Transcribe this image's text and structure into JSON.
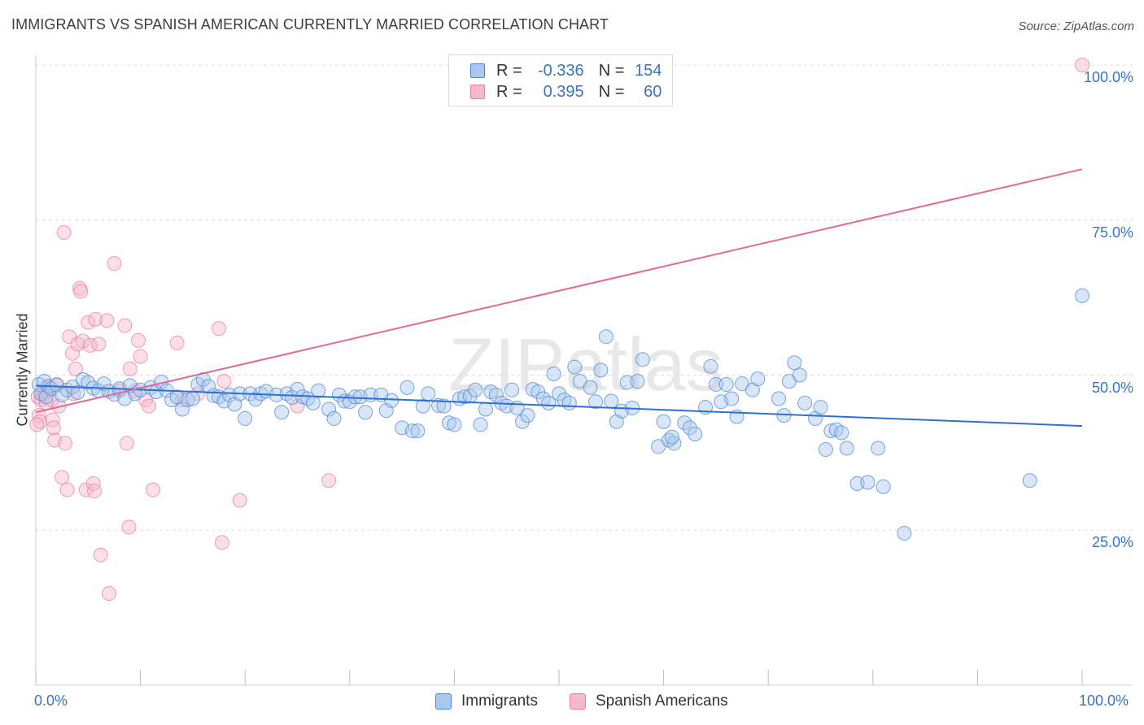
{
  "title": "IMMIGRANTS VS SPANISH AMERICAN CURRENTLY MARRIED CORRELATION CHART",
  "source": "Source: ZipAtlas.com",
  "watermark": "ZIPatlas",
  "legend": {
    "rows": [
      {
        "r_label": "R =",
        "r_value": "-0.336",
        "n_label": "N =",
        "n_value": "154"
      },
      {
        "r_label": "R =",
        "r_value": "0.395",
        "n_label": "N =",
        "n_value": "60"
      }
    ]
  },
  "colors": {
    "immigrants_fill": "#a9c8ef",
    "immigrants_stroke": "#4f88d2",
    "immigrants_line": "#2f6fcf",
    "spanish_fill": "#f6b9ca",
    "spanish_stroke": "#e97ea0",
    "spanish_line": "#e06b93",
    "tick_text": "#3a72c8",
    "grid": "#dcdcdc"
  },
  "chart_data": {
    "type": "scatter",
    "title": "IMMIGRANTS VS SPANISH AMERICAN CURRENTLY MARRIED CORRELATION CHART",
    "xlabel": "",
    "ylabel": "Currently Married",
    "xlim": [
      0,
      100
    ],
    "ylim": [
      0,
      100
    ],
    "x_tick_labels": [
      "0.0%",
      "100.0%"
    ],
    "y_tick_labels": [
      {
        "value": 100,
        "label": "100.0%"
      },
      {
        "value": 75,
        "label": "75.0%"
      },
      {
        "value": 50,
        "label": "50.0%"
      },
      {
        "value": 25,
        "label": "25.0%"
      }
    ],
    "grid": true,
    "legend_position": "bottom",
    "series": [
      {
        "name": "Immigrants",
        "trend": {
          "x": [
            0,
            100
          ],
          "y": [
            48.3,
            41.8
          ]
        },
        "points": [
          [
            0.3,
            48.5
          ],
          [
            0.5,
            47.0
          ],
          [
            0.8,
            49.0
          ],
          [
            1.0,
            46.5
          ],
          [
            1.2,
            48.2
          ],
          [
            1.5,
            47.8
          ],
          [
            2.0,
            48.4
          ],
          [
            2.5,
            46.8
          ],
          [
            3.0,
            47.6
          ],
          [
            3.5,
            48.1
          ],
          [
            4.0,
            47.2
          ],
          [
            4.5,
            49.3
          ],
          [
            5.0,
            48.8
          ],
          [
            5.5,
            47.9
          ],
          [
            6.0,
            47.5
          ],
          [
            6.5,
            48.6
          ],
          [
            7.0,
            47.4
          ],
          [
            7.5,
            46.9
          ],
          [
            8.0,
            47.8
          ],
          [
            8.5,
            46.2
          ],
          [
            9.0,
            48.3
          ],
          [
            9.5,
            47.0
          ],
          [
            10.0,
            47.6
          ],
          [
            11.0,
            48.0
          ],
          [
            11.5,
            47.3
          ],
          [
            12.0,
            48.9
          ],
          [
            12.5,
            47.5
          ],
          [
            13.0,
            46.0
          ],
          [
            13.5,
            46.5
          ],
          [
            14.0,
            44.5
          ],
          [
            14.5,
            46.0
          ],
          [
            15.0,
            46.2
          ],
          [
            15.5,
            48.5
          ],
          [
            16.0,
            49.3
          ],
          [
            16.5,
            48.2
          ],
          [
            17.0,
            46.7
          ],
          [
            17.5,
            46.5
          ],
          [
            18.0,
            45.8
          ],
          [
            18.5,
            46.8
          ],
          [
            19.0,
            45.3
          ],
          [
            19.5,
            47.0
          ],
          [
            20.0,
            43.0
          ],
          [
            20.5,
            47.0
          ],
          [
            21.0,
            46.1
          ],
          [
            21.5,
            47.0
          ],
          [
            22.0,
            47.4
          ],
          [
            23.0,
            46.8
          ],
          [
            23.5,
            44.0
          ],
          [
            24.0,
            47.0
          ],
          [
            24.5,
            46.4
          ],
          [
            25.0,
            47.7
          ],
          [
            25.5,
            46.5
          ],
          [
            26.0,
            46.2
          ],
          [
            26.5,
            45.5
          ],
          [
            27.0,
            47.5
          ],
          [
            28.0,
            44.5
          ],
          [
            28.5,
            43.0
          ],
          [
            29.0,
            46.8
          ],
          [
            29.5,
            45.8
          ],
          [
            30.0,
            45.7
          ],
          [
            30.5,
            46.5
          ],
          [
            31.0,
            46.5
          ],
          [
            31.5,
            44.0
          ],
          [
            32.0,
            46.8
          ],
          [
            33.0,
            46.8
          ],
          [
            33.5,
            44.3
          ],
          [
            34.0,
            45.9
          ],
          [
            35.0,
            41.5
          ],
          [
            35.5,
            48.0
          ],
          [
            36.0,
            41.0
          ],
          [
            36.5,
            41.0
          ],
          [
            37.0,
            45.0
          ],
          [
            37.5,
            47.0
          ],
          [
            38.5,
            45.1
          ],
          [
            39.0,
            45.0
          ],
          [
            39.5,
            42.3
          ],
          [
            40.0,
            42.0
          ],
          [
            40.5,
            46.2
          ],
          [
            41.0,
            46.5
          ],
          [
            41.5,
            46.6
          ],
          [
            42.0,
            47.6
          ],
          [
            42.5,
            42.0
          ],
          [
            43.0,
            44.5
          ],
          [
            43.5,
            47.3
          ],
          [
            44.0,
            46.8
          ],
          [
            44.5,
            45.5
          ],
          [
            45.0,
            45.0
          ],
          [
            45.5,
            47.6
          ],
          [
            46.0,
            44.7
          ],
          [
            46.5,
            42.5
          ],
          [
            47.0,
            43.5
          ],
          [
            47.5,
            47.7
          ],
          [
            48.0,
            47.3
          ],
          [
            48.5,
            46.2
          ],
          [
            49.0,
            45.5
          ],
          [
            49.5,
            50.2
          ],
          [
            50.0,
            47.0
          ],
          [
            50.5,
            46.0
          ],
          [
            51.0,
            45.5
          ],
          [
            51.5,
            51.3
          ],
          [
            52.0,
            49.0
          ],
          [
            53.0,
            48.0
          ],
          [
            53.5,
            45.7
          ],
          [
            54.0,
            50.8
          ],
          [
            54.5,
            56.2
          ],
          [
            55.0,
            45.8
          ],
          [
            55.5,
            42.5
          ],
          [
            56.0,
            44.2
          ],
          [
            56.5,
            48.8
          ],
          [
            57.0,
            44.7
          ],
          [
            57.5,
            49.0
          ],
          [
            58.0,
            52.5
          ],
          [
            59.5,
            38.5
          ],
          [
            60.0,
            42.5
          ],
          [
            60.5,
            39.5
          ],
          [
            61.0,
            39.0
          ],
          [
            62.0,
            42.3
          ],
          [
            62.5,
            41.5
          ],
          [
            63.0,
            40.5
          ],
          [
            64.0,
            44.8
          ],
          [
            64.5,
            51.4
          ],
          [
            65.0,
            48.5
          ],
          [
            65.5,
            45.7
          ],
          [
            66.0,
            48.5
          ],
          [
            66.5,
            46.2
          ],
          [
            67.0,
            43.3
          ],
          [
            67.5,
            48.6
          ],
          [
            68.5,
            47.6
          ],
          [
            69.0,
            49.4
          ],
          [
            71.0,
            46.2
          ],
          [
            71.5,
            43.5
          ],
          [
            72.0,
            49.0
          ],
          [
            72.5,
            52.0
          ],
          [
            73.0,
            50.0
          ],
          [
            73.5,
            45.5
          ],
          [
            74.5,
            43.0
          ],
          [
            75.0,
            44.8
          ],
          [
            75.5,
            38.0
          ],
          [
            76.0,
            41.0
          ],
          [
            76.5,
            41.2
          ],
          [
            77.0,
            40.7
          ],
          [
            77.5,
            38.2
          ],
          [
            78.5,
            32.5
          ],
          [
            79.5,
            32.7
          ],
          [
            80.5,
            38.2
          ],
          [
            81.0,
            32.0
          ],
          [
            83.0,
            24.5
          ],
          [
            95.0,
            33.0
          ],
          [
            100.0,
            62.8
          ],
          [
            60.8,
            40.0
          ]
        ]
      },
      {
        "name": "Spanish Americans",
        "trend": {
          "x": [
            0,
            100
          ],
          "y": [
            44.0,
            83.2
          ]
        },
        "points": [
          [
            0.2,
            46.5
          ],
          [
            0.3,
            43.5
          ],
          [
            0.4,
            42.5
          ],
          [
            0.5,
            46.0
          ],
          [
            0.7,
            47.0
          ],
          [
            0.9,
            46.8
          ],
          [
            1.0,
            45.5
          ],
          [
            1.1,
            47.5
          ],
          [
            1.3,
            48.0
          ],
          [
            1.5,
            46.0
          ],
          [
            1.6,
            42.8
          ],
          [
            1.7,
            41.5
          ],
          [
            1.8,
            39.5
          ],
          [
            2.0,
            48.5
          ],
          [
            2.2,
            45.0
          ],
          [
            2.5,
            33.5
          ],
          [
            2.7,
            73.0
          ],
          [
            2.8,
            39.0
          ],
          [
            3.0,
            31.5
          ],
          [
            3.2,
            56.2
          ],
          [
            3.5,
            53.5
          ],
          [
            3.6,
            47.0
          ],
          [
            3.8,
            51.0
          ],
          [
            4.0,
            55.0
          ],
          [
            4.2,
            64.0
          ],
          [
            4.3,
            63.5
          ],
          [
            4.5,
            55.5
          ],
          [
            4.8,
            31.5
          ],
          [
            5.0,
            58.5
          ],
          [
            5.2,
            54.8
          ],
          [
            5.5,
            32.5
          ],
          [
            5.6,
            31.3
          ],
          [
            5.7,
            59.0
          ],
          [
            6.0,
            55.0
          ],
          [
            6.2,
            21.0
          ],
          [
            6.8,
            58.8
          ],
          [
            7.0,
            14.8
          ],
          [
            7.5,
            68.0
          ],
          [
            8.0,
            47.5
          ],
          [
            8.5,
            58.0
          ],
          [
            8.7,
            39.0
          ],
          [
            8.9,
            25.5
          ],
          [
            9.0,
            51.0
          ],
          [
            9.5,
            47.5
          ],
          [
            9.8,
            55.6
          ],
          [
            10.0,
            53.0
          ],
          [
            10.5,
            46.0
          ],
          [
            10.8,
            45.0
          ],
          [
            11.2,
            31.5
          ],
          [
            13.5,
            55.2
          ],
          [
            14.0,
            46.0
          ],
          [
            15.5,
            47.0
          ],
          [
            17.5,
            57.5
          ],
          [
            17.8,
            23.0
          ],
          [
            18.0,
            49.0
          ],
          [
            19.5,
            29.8
          ],
          [
            25.0,
            45.0
          ],
          [
            28.0,
            33.0
          ],
          [
            100.0,
            100.0
          ],
          [
            0.1,
            42.0
          ]
        ]
      }
    ]
  },
  "bottom_legend": [
    {
      "label": "Immigrants"
    },
    {
      "label": "Spanish Americans"
    }
  ]
}
